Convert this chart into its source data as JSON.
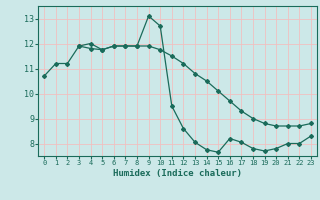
{
  "xlabel": "Humidex (Indice chaleur)",
  "background_color": "#cce8e8",
  "grid_color": "#f0c0c0",
  "line_color": "#1a6b5a",
  "xlim": [
    -0.5,
    23.5
  ],
  "ylim": [
    7.5,
    13.5
  ],
  "yticks": [
    8,
    9,
    10,
    11,
    12,
    13
  ],
  "xticks": [
    0,
    1,
    2,
    3,
    4,
    5,
    6,
    7,
    8,
    9,
    10,
    11,
    12,
    13,
    14,
    15,
    16,
    17,
    18,
    19,
    20,
    21,
    22,
    23
  ],
  "line1_x": [
    0,
    1,
    2,
    3,
    4,
    5,
    6,
    7,
    8,
    9,
    10,
    11,
    12,
    13,
    14,
    15,
    16,
    17,
    18,
    19,
    20,
    21,
    22,
    23
  ],
  "line1_y": [
    10.7,
    11.2,
    11.2,
    11.9,
    11.8,
    11.75,
    11.9,
    11.9,
    11.9,
    11.9,
    11.75,
    11.5,
    11.2,
    10.8,
    10.5,
    10.1,
    9.7,
    9.3,
    9.0,
    8.8,
    8.7,
    8.7,
    8.7,
    8.8
  ],
  "line2_x": [
    3,
    4,
    5,
    6,
    7,
    8,
    9,
    10,
    11,
    12,
    13,
    14,
    15,
    16,
    17,
    18,
    19,
    20,
    21,
    22,
    23
  ],
  "line2_y": [
    11.9,
    12.0,
    11.75,
    11.9,
    11.9,
    11.9,
    13.1,
    12.7,
    9.5,
    8.6,
    8.05,
    7.75,
    7.65,
    8.2,
    8.05,
    7.8,
    7.7,
    7.8,
    8.0,
    8.0,
    8.3
  ]
}
